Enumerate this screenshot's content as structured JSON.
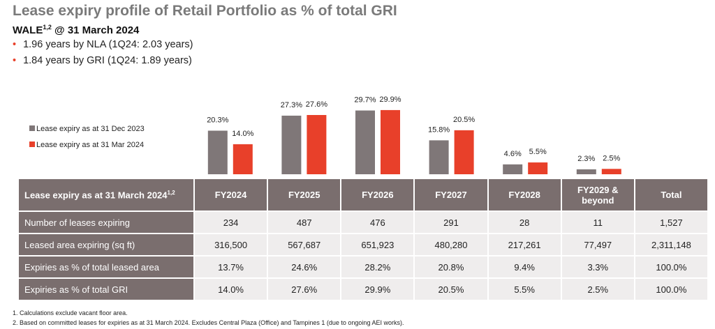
{
  "title": "Lease expiry profile of Retail Portfolio as % of total GRI",
  "wale": {
    "label": "WALE",
    "sup": "1,2",
    "date": "@ 31 March 2024"
  },
  "bullets": [
    "1.96 years by NLA (1Q24: 2.03 years)",
    "1.84 years by GRI (1Q24: 1.89 years)"
  ],
  "chart_data": {
    "type": "bar",
    "categories": [
      "FY2024",
      "FY2025",
      "FY2026",
      "FY2027",
      "FY2028",
      "FY2029 & beyond"
    ],
    "series": [
      {
        "name": "Lease expiry as at 31 Dec 2023",
        "color": "#7f7778",
        "values": [
          20.3,
          27.3,
          29.7,
          15.8,
          4.6,
          2.3
        ],
        "value_labels": [
          "20.3%",
          "27.3%",
          "29.7%",
          "15.8%",
          "4.6%",
          "2.3%"
        ]
      },
      {
        "name": "Lease expiry as at 31 Mar 2024",
        "color": "#e8402a",
        "values": [
          14.0,
          27.6,
          29.9,
          20.5,
          5.5,
          2.5
        ],
        "value_labels": [
          "14.0%",
          "27.6%",
          "29.9%",
          "20.5%",
          "5.5%",
          "2.5%"
        ]
      }
    ]
  },
  "table": {
    "header": {
      "label": "Lease expiry as at 31 March 2024",
      "sup": "1,2",
      "total": "Total"
    },
    "rows": [
      {
        "label": "Number of leases expiring",
        "cells": [
          "234",
          "487",
          "476",
          "291",
          "28",
          "11",
          "1,527"
        ]
      },
      {
        "label": "Leased area expiring (sq ft)",
        "cells": [
          "316,500",
          "567,687",
          "651,923",
          "480,280",
          "217,261",
          "77,497",
          "2,311,148"
        ]
      },
      {
        "label": "Expiries as % of total leased area",
        "cells": [
          "13.7%",
          "24.6%",
          "28.2%",
          "20.8%",
          "9.4%",
          "3.3%",
          "100.0%"
        ]
      },
      {
        "label": "Expiries as % of total GRI",
        "cells": [
          "14.0%",
          "27.6%",
          "29.9%",
          "20.5%",
          "5.5%",
          "2.5%",
          "100.0%"
        ]
      }
    ]
  },
  "footnotes": [
    "1. Calculations exclude vacant floor area.",
    "2. Based on committed leases for expiries as at 31 March 2024. Excludes Central Plaza (Office) and Tampines 1 (due to ongoing AEI works)."
  ]
}
